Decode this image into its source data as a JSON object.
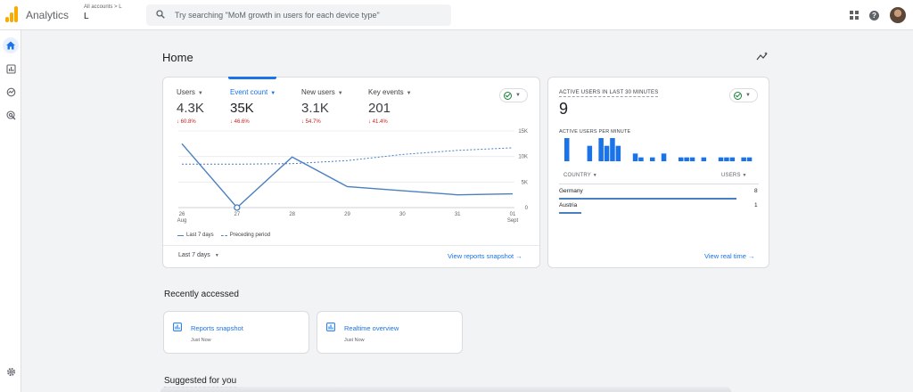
{
  "header": {
    "app_title": "Analytics",
    "account_path": "All accounts > L",
    "account_name": "L",
    "search_placeholder": "Try searching \"MoM growth in users for each device type\""
  },
  "page": {
    "title": "Home"
  },
  "overview_card": {
    "metrics": [
      {
        "label": "Users",
        "value": "4.3K",
        "change": "60.8%"
      },
      {
        "label": "Event count",
        "value": "35K",
        "change": "46.6%"
      },
      {
        "label": "New users",
        "value": "3.1K",
        "change": "54.7%"
      },
      {
        "label": "Key events",
        "value": "201",
        "change": "41.4%"
      }
    ],
    "date_range": "Last 7 days",
    "view_link": "View reports snapshot →"
  },
  "chart_data": {
    "type": "line",
    "x": [
      "26 Aug",
      "27",
      "28",
      "29",
      "30",
      "31",
      "01 Sept"
    ],
    "x_ticks": [
      {
        "label": "26",
        "sub": "Aug"
      },
      {
        "label": "27",
        "sub": ""
      },
      {
        "label": "28",
        "sub": ""
      },
      {
        "label": "29",
        "sub": ""
      },
      {
        "label": "30",
        "sub": ""
      },
      {
        "label": "31",
        "sub": ""
      },
      {
        "label": "01",
        "sub": "Sept"
      }
    ],
    "y_ticks": [
      "0",
      "5K",
      "10K",
      "15K"
    ],
    "ylim": [
      0,
      15000
    ],
    "series": [
      {
        "name": "Last 7 days",
        "style": "solid",
        "values": [
          12500,
          0,
          9900,
          4100,
          3300,
          2500,
          2700
        ]
      },
      {
        "name": "Preceding period",
        "style": "dashed",
        "values": [
          8500,
          8500,
          8600,
          9200,
          10400,
          11200,
          11700
        ]
      }
    ],
    "highlight_index": 1,
    "color": "#4a7fc1"
  },
  "realtime_card": {
    "heading": "ACTIVE USERS IN LAST 30 MINUTES",
    "count": "9",
    "per_minute_label": "ACTIVE USERS PER MINUTE",
    "bars": [
      3,
      0,
      0,
      0,
      2,
      0,
      3,
      2,
      3,
      2,
      0,
      0,
      1,
      0.5,
      0,
      0.5,
      0,
      1,
      0,
      0,
      0.5,
      0.5,
      0.5,
      0,
      0.5,
      0,
      0,
      0.5,
      0.5,
      0.5,
      0,
      0.5,
      0.5
    ],
    "col_country": "COUNTRY",
    "col_users": "USERS",
    "rows": [
      {
        "country": "Germany",
        "users": "8",
        "share": 0.89
      },
      {
        "country": "Austria",
        "users": "1",
        "share": 0.11
      }
    ],
    "view_link": "View real time →"
  },
  "recently_accessed": {
    "title": "Recently accessed",
    "items": [
      {
        "title": "Reports snapshot",
        "sub": "Just Now"
      },
      {
        "title": "Realtime overview",
        "sub": "Just Now"
      }
    ]
  },
  "suggested": {
    "title": "Suggested for you"
  },
  "colors": {
    "accent": "#1a73e8",
    "negative": "#c5221f",
    "logo": "#f9ab00"
  }
}
